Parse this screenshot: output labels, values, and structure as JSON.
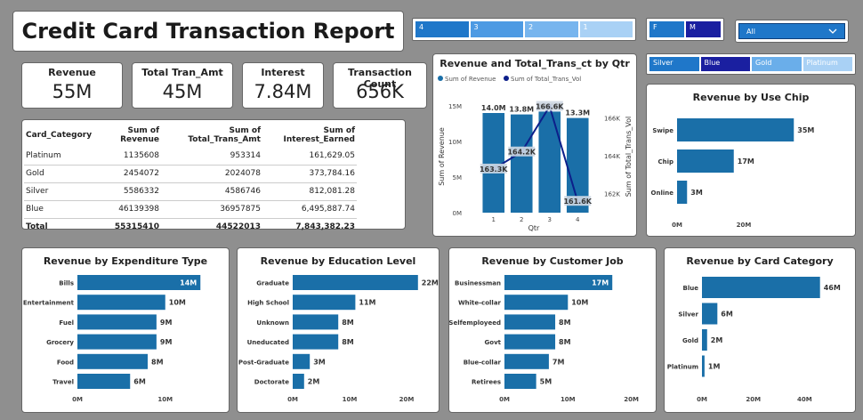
{
  "report": {
    "title": "Credit Card Transaction Report"
  },
  "kpis": [
    {
      "label": "Revenue",
      "value": "55M"
    },
    {
      "label": "Total Tran_Amt",
      "value": "45M"
    },
    {
      "label": "Interest",
      "value": "7.84M"
    },
    {
      "label": "Transaction Count",
      "value": "656K"
    }
  ],
  "slicers": {
    "quarter": [
      "4",
      "3",
      "2",
      "1"
    ],
    "gender": [
      "F",
      "M"
    ],
    "dropdown": {
      "value": "All",
      "icon": "chevron-down-icon"
    },
    "card": [
      "Silver",
      "Blue",
      "Gold",
      "Platinum"
    ]
  },
  "table": {
    "headers": [
      "Card_Category",
      "Sum of Revenue",
      "Sum of Total_Trans_Amt",
      "Sum of Interest_Earned"
    ],
    "rows": [
      [
        "Platinum",
        "1135608",
        "953314",
        "161,629.05"
      ],
      [
        "Gold",
        "2454072",
        "2024078",
        "373,784.16"
      ],
      [
        "Silver",
        "5586332",
        "4586746",
        "812,081.28"
      ],
      [
        "Blue",
        "46139398",
        "36957875",
        "6,495,887.74"
      ]
    ],
    "total": [
      "Total",
      "55315410",
      "44522013",
      "7,843,382.23"
    ]
  },
  "colors": {
    "bar": "#1a6fa8",
    "line": "#0d1f8a",
    "accent": "#1f77c9"
  },
  "chart_data": [
    {
      "type": "bar",
      "title": "Revenue and Total_Trans_ct by Qtr",
      "legend": [
        "Sum of Revenue",
        "Sum of Total_Trans_Vol"
      ],
      "xlabel": "Qtr",
      "ylabel": "Sum of Revenue",
      "y2label": "Sum of Total_Trans_Vol",
      "categories": [
        "1",
        "2",
        "3",
        "4"
      ],
      "series": [
        {
          "name": "Sum of Revenue",
          "values": [
            14.0,
            13.8,
            14.2,
            13.3
          ],
          "labels": [
            "14.0M",
            "13.8M",
            "14.2M",
            "13.3M"
          ]
        },
        {
          "name": "Sum of Total_Trans_Vol",
          "values": [
            163.3,
            164.2,
            166.6,
            161.6
          ],
          "labels": [
            "163.3K",
            "164.2K",
            "166.6K",
            "161.6K"
          ]
        }
      ],
      "yticks": [
        "0M",
        "5M",
        "10M",
        "15M"
      ],
      "y2ticks": [
        "162K",
        "164K",
        "166K"
      ],
      "ylim": [
        0,
        16
      ],
      "y2lim": [
        161,
        167
      ]
    },
    {
      "type": "bar",
      "orientation": "horizontal",
      "title": "Revenue by Use Chip",
      "categories": [
        "Swipe",
        "Chip",
        "Online"
      ],
      "values": [
        35,
        17,
        3
      ],
      "labels": [
        "35M",
        "17M",
        "3M"
      ],
      "xticks": [
        "0M",
        "20M"
      ],
      "xlim": [
        0,
        40
      ]
    },
    {
      "type": "bar",
      "orientation": "horizontal",
      "title": "Revenue by Expenditure Type",
      "categories": [
        "Bills",
        "Entertainment",
        "Fuel",
        "Grocery",
        "Food",
        "Travel"
      ],
      "values": [
        14,
        10,
        9,
        9,
        8,
        6
      ],
      "labels": [
        "14M",
        "10M",
        "9M",
        "9M",
        "8M",
        "6M"
      ],
      "xticks": [
        "0M",
        "10M"
      ],
      "xlim": [
        0,
        16
      ]
    },
    {
      "type": "bar",
      "orientation": "horizontal",
      "title": "Revenue by Education Level",
      "categories": [
        "Graduate",
        "High School",
        "Unknown",
        "Uneducated",
        "Post-Graduate",
        "Doctorate"
      ],
      "values": [
        22,
        11,
        8,
        8,
        3,
        2
      ],
      "labels": [
        "22M",
        "11M",
        "8M",
        "8M",
        "3M",
        "2M"
      ],
      "xticks": [
        "0M",
        "10M",
        "20M"
      ],
      "xlim": [
        0,
        25
      ]
    },
    {
      "type": "bar",
      "orientation": "horizontal",
      "title": "Revenue by Customer Job",
      "categories": [
        "Businessman",
        "White-collar",
        "Selfemployeed",
        "Govt",
        "Blue-collar",
        "Retirees"
      ],
      "values": [
        17,
        10,
        8,
        8,
        7,
        5
      ],
      "labels": [
        "17M",
        "10M",
        "8M",
        "8M",
        "7M",
        "5M"
      ],
      "xticks": [
        "0M",
        "10M",
        "20M"
      ],
      "xlim": [
        0,
        23
      ]
    },
    {
      "type": "bar",
      "orientation": "horizontal",
      "title": "Revenue by Card Category",
      "categories": [
        "Blue",
        "Silver",
        "Gold",
        "Platinum"
      ],
      "values": [
        46,
        6,
        2,
        1
      ],
      "labels": [
        "46M",
        "6M",
        "2M",
        "1M"
      ],
      "xticks": [
        "0M",
        "20M",
        "40M"
      ],
      "xlim": [
        0,
        52
      ]
    }
  ]
}
